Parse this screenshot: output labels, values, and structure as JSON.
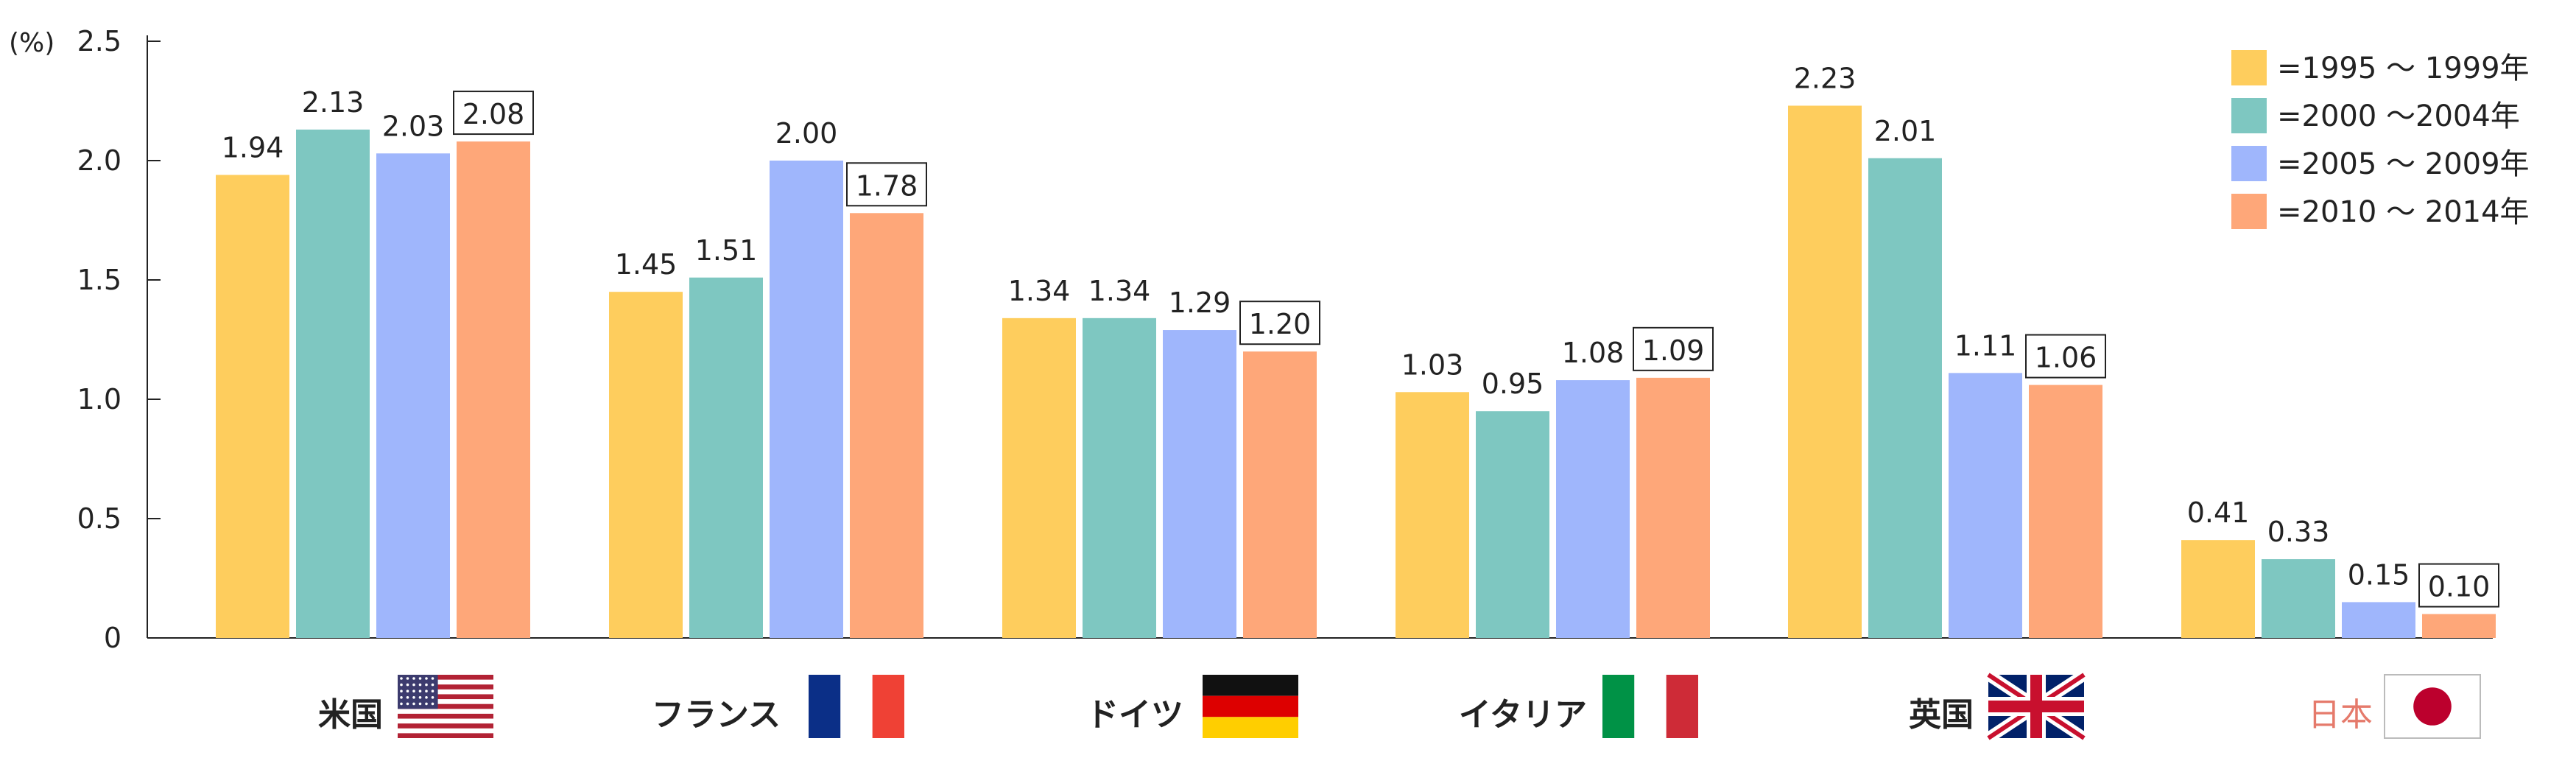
{
  "chart_data": {
    "type": "bar",
    "ylabel": "(%)",
    "ylim": [
      0,
      2.5
    ],
    "yticks": [
      "0",
      "0.5",
      "1.0",
      "1.5",
      "2.0",
      "2.5"
    ],
    "categories": [
      "米国",
      "フランス",
      "ドイツ",
      "イタリア",
      "英国",
      "日本"
    ],
    "flags": [
      "us-flag",
      "france-flag",
      "germany-flag",
      "italy-flag",
      "uk-flag",
      "japan-flag"
    ],
    "series": [
      {
        "name": "=1995 ～ 1999年",
        "color": "#fecd5d",
        "values": [
          1.94,
          1.45,
          1.34,
          1.03,
          2.23,
          0.41
        ],
        "labels": [
          "1.94",
          "1.45",
          "1.34",
          "1.03",
          "2.23",
          "0.41"
        ]
      },
      {
        "name": "=2000 ～2004年",
        "color": "#7ec7c1",
        "values": [
          2.13,
          1.51,
          1.34,
          0.95,
          2.01,
          0.33
        ],
        "labels": [
          "2.13",
          "1.51",
          "1.34",
          "0.95",
          "2.01",
          "0.33"
        ]
      },
      {
        "name": "=2005 ～ 2009年",
        "color": "#9fb6fc",
        "values": [
          2.03,
          2.0,
          1.29,
          1.08,
          1.11,
          0.15
        ],
        "labels": [
          "2.03",
          "2.00",
          "1.29",
          "1.08",
          "1.11",
          "0.15"
        ]
      },
      {
        "name": "=2010 ～ 2014年",
        "color": "#fea779",
        "values": [
          2.08,
          1.78,
          1.2,
          1.09,
          1.06,
          0.1
        ],
        "labels": [
          "2.08",
          "1.78",
          "1.20",
          "1.09",
          "1.06",
          "0.10"
        ],
        "boxed": true
      }
    ],
    "highlight_category": "日本",
    "highlight_color": "#e57a6b",
    "legend_position": "top-right",
    "grid": false
  }
}
